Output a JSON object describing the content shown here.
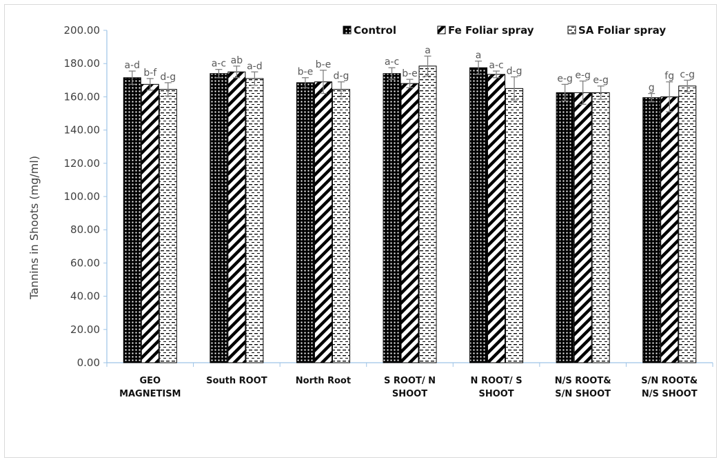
{
  "chart_data": {
    "type": "bar",
    "ylabel": "Tannins in Shoots (mg/ml)",
    "xlabel": "",
    "ylim": [
      0,
      200
    ],
    "yticks": [
      "0.00",
      "20.00",
      "40.00",
      "60.00",
      "80.00",
      "100.00",
      "120.00",
      "140.00",
      "160.00",
      "180.00",
      "200.00"
    ],
    "categories": [
      [
        "GEO",
        "MAGNETISM"
      ],
      [
        "South ROOT"
      ],
      [
        "North Root"
      ],
      [
        "S ROOT/ N",
        "SHOOT"
      ],
      [
        "N ROOT/ S",
        "SHOOT"
      ],
      [
        "N/S ROOT&",
        "S/N SHOOT"
      ],
      [
        "S/N ROOT&",
        "N/S SHOOT"
      ]
    ],
    "legend_position": "top-right",
    "grid": false,
    "series": [
      {
        "name": "Control",
        "pattern": "dots-on-black",
        "values": [
          171.5,
          174.0,
          168.5,
          174.0,
          177.5,
          162.5,
          159.5
        ],
        "errors": [
          4.0,
          2.5,
          3.0,
          3.5,
          4.0,
          5.0,
          2.5
        ],
        "labels": [
          "a-d",
          "a-c",
          "b-e",
          "a-c",
          "a",
          "e-g",
          "g"
        ]
      },
      {
        "name": "Fe Foliar spray",
        "pattern": "diagonal-stripes",
        "values": [
          167.5,
          175.0,
          169.0,
          168.0,
          173.5,
          162.5,
          160.0
        ],
        "errors": [
          3.5,
          3.5,
          7.0,
          2.5,
          2.0,
          7.0,
          9.0
        ],
        "labels": [
          "b-f",
          "ab",
          "b-e",
          "b-e",
          "a-c",
          "e-g",
          "fg"
        ]
      },
      {
        "name": "SA Foliar spray",
        "pattern": "dashes",
        "values": [
          164.5,
          171.0,
          164.5,
          178.5,
          165.0,
          162.5,
          166.5
        ],
        "errors": [
          4.0,
          4.0,
          4.5,
          6.0,
          7.0,
          4.0,
          3.5
        ],
        "labels": [
          "d-g",
          "a-d",
          "d-g",
          "a",
          "d-g",
          "e-g",
          "c-g"
        ]
      }
    ]
  }
}
